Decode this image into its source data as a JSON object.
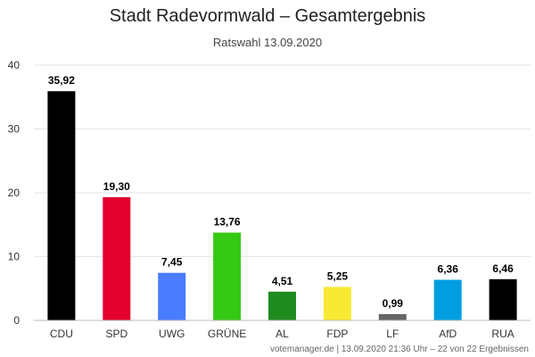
{
  "chart_data": {
    "type": "bar",
    "title": "Stadt Radevormwald – Gesamtergebnis",
    "subtitle": "Ratswahl 13.09.2020",
    "xlabel": "",
    "ylabel": "",
    "ylim": [
      0,
      40
    ],
    "yticks": [
      0,
      10,
      20,
      30,
      40
    ],
    "grid": true,
    "categories": [
      "CDU",
      "SPD",
      "UWG",
      "GRÜNE",
      "AL",
      "FDP",
      "LF",
      "AfD",
      "RUA"
    ],
    "values": [
      35.92,
      19.3,
      7.45,
      13.76,
      4.51,
      5.25,
      0.99,
      6.36,
      6.46
    ],
    "value_labels": [
      "35,92",
      "19,30",
      "7,45",
      "13,76",
      "4,51",
      "5,25",
      "0,99",
      "6,36",
      "6,46"
    ],
    "colors": [
      "#000000",
      "#e3002d",
      "#4a7cff",
      "#35c914",
      "#1f8c1f",
      "#f8ea32",
      "#666666",
      "#009ee0",
      "#000000"
    ]
  },
  "footer": {
    "credits": "votemanager.de | 13.09.2020 21:36 Uhr – 22 von 22 Ergebnissen"
  }
}
